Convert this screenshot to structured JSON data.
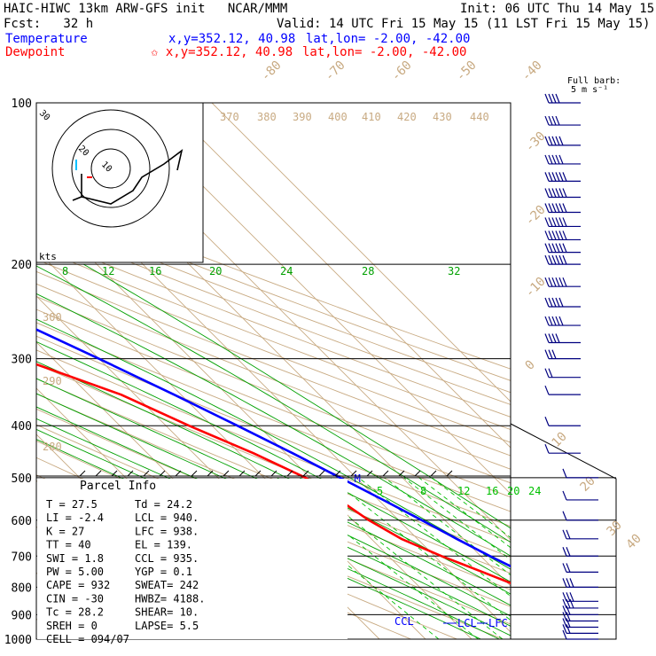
{
  "header": {
    "title": "HAIC-HIWC 13km ARW-GFS init   NCAR/MMM",
    "init": "Init: 06 UTC Thu 14 May 15",
    "fcst": "Fcst:   32 h",
    "valid": "Valid: 14 UTC Fri 15 May 15 (11 LST Fri 15 May 15)",
    "temperature_label": "Temperature",
    "temperature_xy": "x,y=352.12, 40.98",
    "temperature_latlon": "lat,lon= -2.00, -42.00",
    "dewpoint_label": "Dewpoint",
    "dewpoint_xy": "✩ x,y=352.12, 40.98",
    "dewpoint_latlon": "lat,lon= -2.00, -42.00",
    "barb_label": "Full barb:",
    "barb_units": "5 m s⁻¹"
  },
  "colors": {
    "temperature": "#0000ff",
    "dewpoint": "#ff0000",
    "isotherm": "#c8aa82",
    "moist_adiabat": "#00a000",
    "mixing_ratio": "#00c000",
    "isobar": "#000000",
    "wind_barb": "#000080"
  },
  "chart_data": {
    "type": "line",
    "subtype": "skew-T log-P sounding",
    "y_axis": {
      "label": "",
      "scale": "log",
      "ticks": [
        100,
        200,
        300,
        400,
        500,
        600,
        700,
        800,
        900,
        1000
      ]
    },
    "isotherm_labels": [
      "-80",
      "-70",
      "-60",
      "-50",
      "-40",
      "-30",
      "-20",
      "-10",
      "0",
      "10",
      "20",
      "30",
      "40"
    ],
    "theta_labels": [
      "370",
      "380",
      "390",
      "400",
      "410",
      "420",
      "430",
      "440",
      "300",
      "290",
      "280",
      "270"
    ],
    "moist_adiabat_labels": [
      "8",
      "12",
      "16",
      "20",
      "24",
      "28",
      "32"
    ],
    "mixing_ratio_labels": [
      "2",
      "3",
      "5",
      "8",
      "12",
      "16",
      "20",
      "24"
    ],
    "series": [
      {
        "name": "Temperature",
        "points": [
          [
            1000,
            27.5
          ],
          [
            975,
            26.5
          ],
          [
            950,
            24.8
          ],
          [
            925,
            23.2
          ],
          [
            900,
            21.5
          ],
          [
            875,
            20.0
          ],
          [
            850,
            19.5
          ],
          [
            825,
            18.5
          ],
          [
            800,
            17.5
          ],
          [
            775,
            16.8
          ],
          [
            750,
            15.6
          ],
          [
            700,
            12.0
          ],
          [
            650,
            8.5
          ],
          [
            600,
            5.0
          ],
          [
            550,
            1.0
          ],
          [
            500,
            -3.5
          ],
          [
            450,
            -8.5
          ],
          [
            400,
            -14.5
          ],
          [
            350,
            -21.5
          ],
          [
            300,
            -30.0
          ],
          [
            250,
            -40.5
          ],
          [
            200,
            -53.5
          ],
          [
            175,
            -61.0
          ],
          [
            150,
            -68.0
          ],
          [
            125,
            -75.0
          ],
          [
            115,
            -79.0
          ],
          [
            100,
            -80.0
          ]
        ]
      },
      {
        "name": "Dewpoint",
        "points": [
          [
            1000,
            24.2
          ],
          [
            975,
            24.0
          ],
          [
            950,
            23.4
          ],
          [
            925,
            22.0
          ],
          [
            900,
            20.5
          ],
          [
            875,
            18.0
          ],
          [
            850,
            16.0
          ],
          [
            800,
            12.0
          ],
          [
            750,
            7.0
          ],
          [
            700,
            1.5
          ],
          [
            650,
            -3.5
          ],
          [
            600,
            -6.5
          ],
          [
            550,
            -8.5
          ],
          [
            500,
            -11.0
          ],
          [
            450,
            -17.0
          ],
          [
            400,
            -25.0
          ],
          [
            350,
            -33.0
          ],
          [
            300,
            -47.0
          ],
          [
            280,
            -53.0
          ],
          [
            260,
            -56.0
          ],
          [
            230,
            -60.0
          ],
          [
            200,
            -68.0
          ],
          [
            180,
            -75.0
          ],
          [
            160,
            -79.0
          ],
          [
            140,
            -81.0
          ],
          [
            120,
            -82.0
          ],
          [
            110,
            -81.0
          ],
          [
            100,
            -79.0
          ]
        ]
      }
    ],
    "annotations": [
      {
        "text": "EL",
        "p": 139
      },
      {
        "text": "CCL",
        "p": 935
      },
      {
        "text": "LCL",
        "p": 940
      },
      {
        "text": "LFC",
        "p": 938
      },
      {
        "text": "M",
        "p": 500
      }
    ],
    "hodograph": {
      "ring_labels": [
        "30",
        "20",
        "10"
      ],
      "units": "kts"
    },
    "wind_barbs": [
      {
        "p": 1000,
        "u": -2,
        "v": -1
      },
      {
        "p": 975,
        "u": -3,
        "v": -1
      },
      {
        "p": 950,
        "u": -4,
        "v": -1
      },
      {
        "p": 925,
        "u": -4,
        "v": -1
      },
      {
        "p": 900,
        "u": -4,
        "v": -1
      },
      {
        "p": 875,
        "u": -5,
        "v": 0
      },
      {
        "p": 850,
        "u": -5,
        "v": 0
      },
      {
        "p": 800,
        "u": -5,
        "v": 1
      },
      {
        "p": 750,
        "u": -4,
        "v": 2
      },
      {
        "p": 700,
        "u": -3,
        "v": 2
      },
      {
        "p": 650,
        "u": -3,
        "v": 2
      },
      {
        "p": 600,
        "u": -2,
        "v": 2
      },
      {
        "p": 550,
        "u": -2,
        "v": 2
      },
      {
        "p": 500,
        "u": -2,
        "v": 1
      },
      {
        "p": 450,
        "u": -1,
        "v": 1
      },
      {
        "p": 400,
        "u": -1,
        "v": 0
      },
      {
        "p": 350,
        "u": 2,
        "v": 1
      },
      {
        "p": 325,
        "u": 4,
        "v": 1
      },
      {
        "p": 300,
        "u": 6,
        "v": 1
      },
      {
        "p": 280,
        "u": 8,
        "v": 1
      },
      {
        "p": 260,
        "u": 9,
        "v": 1
      },
      {
        "p": 240,
        "u": 10,
        "v": 1
      },
      {
        "p": 220,
        "u": 11,
        "v": 1
      },
      {
        "p": 200,
        "u": 12,
        "v": 1
      },
      {
        "p": 190,
        "u": 12,
        "v": 1
      },
      {
        "p": 180,
        "u": 12,
        "v": 1
      },
      {
        "p": 170,
        "u": 12,
        "v": 1
      },
      {
        "p": 160,
        "u": 12,
        "v": 1
      },
      {
        "p": 150,
        "u": 12,
        "v": 1
      },
      {
        "p": 140,
        "u": 11,
        "v": 1
      },
      {
        "p": 130,
        "u": 10,
        "v": 1
      },
      {
        "p": 120,
        "u": 9,
        "v": 1
      },
      {
        "p": 110,
        "u": 8,
        "v": 1
      },
      {
        "p": 100,
        "u": 7,
        "v": 1
      }
    ]
  },
  "parcel_info": {
    "title": "Parcel Info",
    "rows": [
      [
        "T   =    27.5",
        "Td =   24.2"
      ],
      [
        "LI  =    -2.4",
        "LCL =  940."
      ],
      [
        "K   =      27",
        "LFC =  938."
      ],
      [
        "TT  =      40",
        "EL  =  139."
      ],
      [
        "SWI =     1.8",
        "CCL =  935."
      ],
      [
        "PW  =   5.00",
        "YGP =    0.1"
      ],
      [
        "CAPE =    932",
        "SWEAT=   242"
      ],
      [
        "CIN  =    -30",
        "HWBZ= 4188."
      ],
      [
        "Tc  =    28.2",
        "SHEAR=   10."
      ],
      [
        "SREH =      0",
        "LAPSE=   5.5"
      ],
      [
        "CELL = 094/07",
        ""
      ]
    ]
  }
}
